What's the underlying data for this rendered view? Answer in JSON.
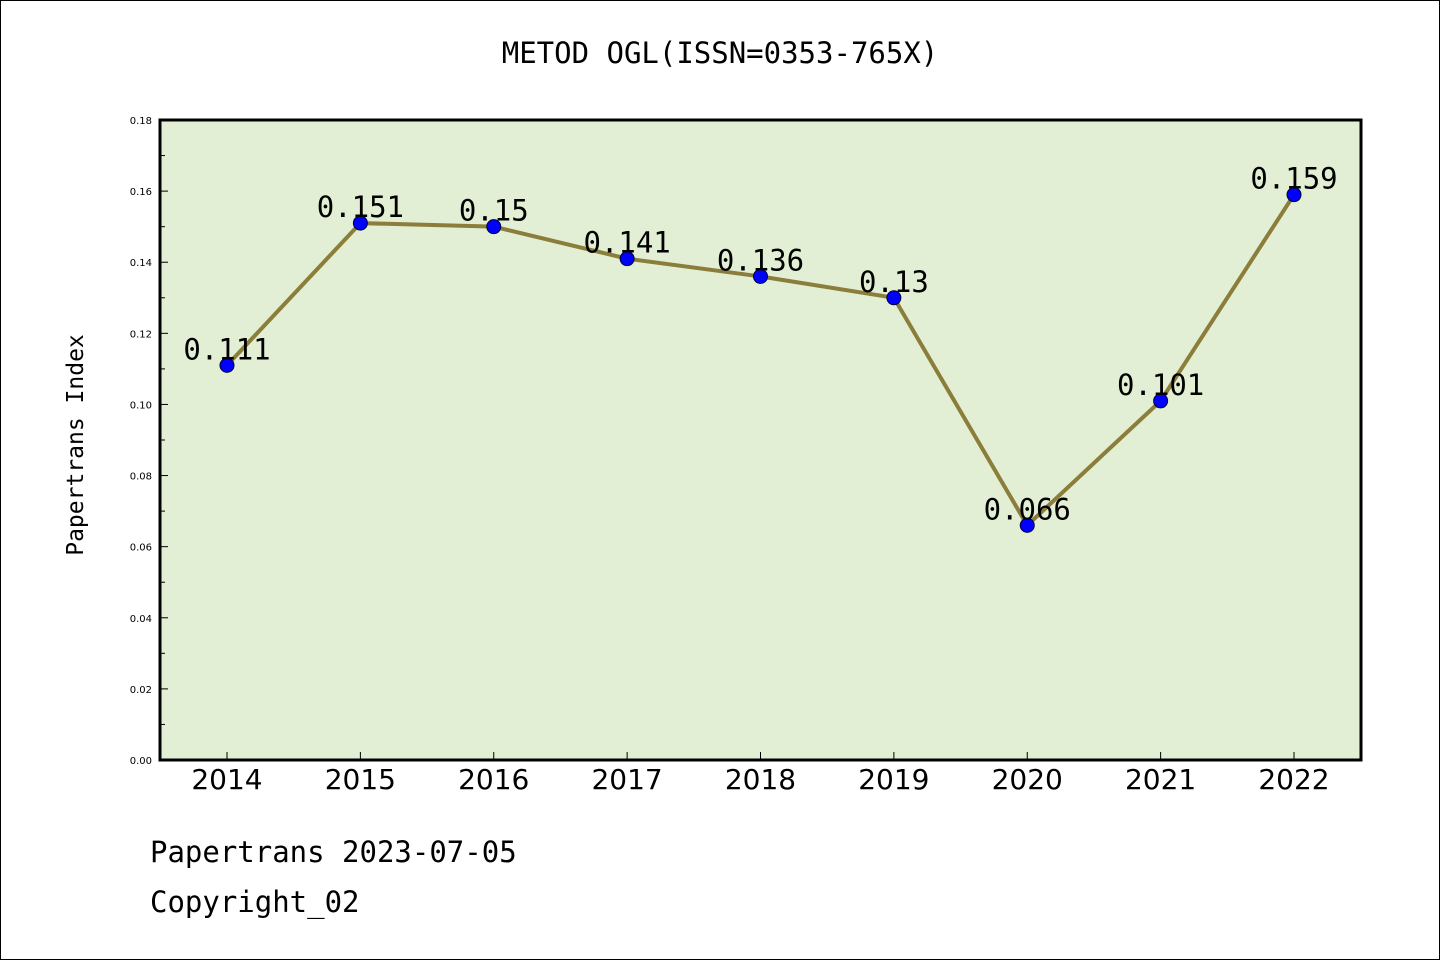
{
  "chart_data": {
    "type": "line",
    "title": "METOD OGL(ISSN=0353-765X)",
    "xlabel": "",
    "ylabel": "Papertrans Index",
    "categories": [
      "2014",
      "2015",
      "2016",
      "2017",
      "2018",
      "2019",
      "2020",
      "2021",
      "2022"
    ],
    "values": [
      0.111,
      0.151,
      0.15,
      0.141,
      0.136,
      0.13,
      0.066,
      0.101,
      0.159
    ],
    "data_labels": [
      "0.111",
      "0.151",
      "0.15",
      "0.141",
      "0.136",
      "0.13",
      "0.066",
      "0.101",
      "0.159"
    ],
    "ylim": [
      0,
      0.18
    ],
    "yticks": [
      "0.00",
      "0.02",
      "0.04",
      "0.06",
      "0.08",
      "0.10",
      "0.12",
      "0.14",
      "0.16",
      "0.18"
    ],
    "grid": false,
    "colors": {
      "plot_background": "#e2efd4",
      "line": "#8b7d3a",
      "marker": "#0000ff"
    }
  },
  "footer": {
    "line1": "Papertrans 2023-07-05",
    "line2": "Copyright_02"
  }
}
